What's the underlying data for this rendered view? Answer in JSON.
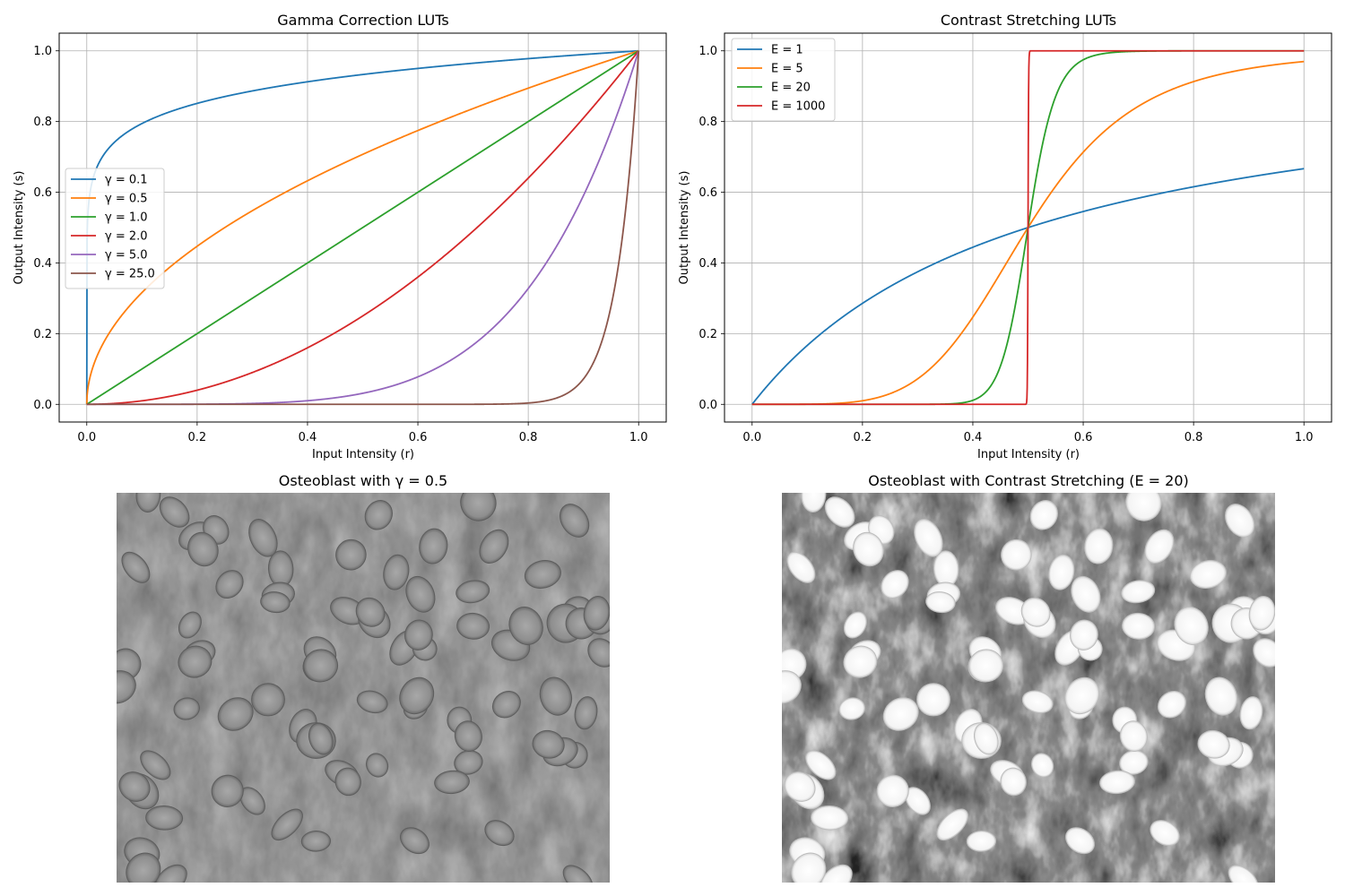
{
  "figure": {
    "image1_title": "Osteoblast with γ = 0.5",
    "image2_title": "Osteoblast with Contrast Stretching (E = 20)"
  },
  "chart_data": [
    {
      "type": "line",
      "title": "Gamma Correction LUTs",
      "xlabel": "Input Intensity (r)",
      "ylabel": "Output Intensity (s)",
      "xlim": [
        -0.05,
        1.05
      ],
      "ylim": [
        -0.05,
        1.05
      ],
      "xticks": [
        0.0,
        0.2,
        0.4,
        0.6,
        0.8,
        1.0
      ],
      "yticks": [
        0.0,
        0.2,
        0.4,
        0.6,
        0.8,
        1.0
      ],
      "tick_labels": [
        "0.0",
        "0.2",
        "0.4",
        "0.6",
        "0.8",
        "1.0"
      ],
      "grid": true,
      "legend_position": "center-left",
      "function": "s = r^γ",
      "series": [
        {
          "name": "γ = 0.1",
          "gamma": 0.1,
          "color": "#1f77b4"
        },
        {
          "name": "γ = 0.5",
          "gamma": 0.5,
          "color": "#ff7f0e"
        },
        {
          "name": "γ = 1.0",
          "gamma": 1.0,
          "color": "#2ca02c"
        },
        {
          "name": "γ = 2.0",
          "gamma": 2.0,
          "color": "#d62728"
        },
        {
          "name": "γ = 5.0",
          "gamma": 5.0,
          "color": "#9467bd"
        },
        {
          "name": "γ = 25.0",
          "gamma": 25.0,
          "color": "#8c564b"
        }
      ]
    },
    {
      "type": "line",
      "title": "Contrast Stretching LUTs",
      "xlabel": "Input Intensity (r)",
      "ylabel": "Output Intensity (s)",
      "xlim": [
        -0.05,
        1.05
      ],
      "ylim": [
        -0.05,
        1.05
      ],
      "xticks": [
        0.0,
        0.2,
        0.4,
        0.6,
        0.8,
        1.0
      ],
      "yticks": [
        0.0,
        0.2,
        0.4,
        0.6,
        0.8,
        1.0
      ],
      "tick_labels": [
        "0.0",
        "0.2",
        "0.4",
        "0.6",
        "0.8",
        "1.0"
      ],
      "grid": true,
      "legend_position": "upper-left",
      "function": "s = 1 / (1 + (m/r)^E)",
      "m": 0.5,
      "series": [
        {
          "name": "E = 1",
          "E": 1,
          "color": "#1f77b4"
        },
        {
          "name": "E = 5",
          "E": 5,
          "color": "#ff7f0e"
        },
        {
          "name": "E = 20",
          "E": 20,
          "color": "#2ca02c"
        },
        {
          "name": "E = 1000",
          "E": 1000,
          "color": "#d62728"
        }
      ]
    }
  ]
}
